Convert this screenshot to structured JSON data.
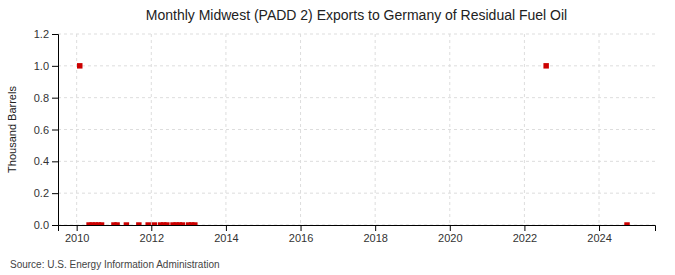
{
  "chart_data": {
    "type": "scatter",
    "title": "Monthly Midwest (PADD 2) Exports to Germany of Residual Fuel Oil",
    "ylabel": "Thousand Barrels",
    "source": "Source: U.S. Energy Information Administration",
    "color": "#cc0000",
    "marker": "square",
    "grid": true,
    "xlim": [
      2009.5,
      2025.5
    ],
    "xticks": [
      2010,
      2012,
      2014,
      2016,
      2018,
      2020,
      2022,
      2024
    ],
    "ylim": [
      0.0,
      1.2
    ],
    "yticks": [
      {
        "value": 0.0,
        "label": "0.0"
      },
      0.2,
      0.4,
      0.6,
      0.8,
      {
        "value": 1.0,
        "label": "1.0"
      },
      1.2
    ],
    "x": [
      2010.083,
      2010.333,
      2010.417,
      2010.5,
      2010.583,
      2010.667,
      2011.0,
      2011.083,
      2011.333,
      2011.667,
      2011.917,
      2012.083,
      2012.25,
      2012.333,
      2012.417,
      2012.583,
      2012.667,
      2012.75,
      2012.833,
      2013.0,
      2013.083,
      2013.167,
      2022.583,
      2024.75
    ],
    "values": [
      1.0,
      0.0,
      0.0,
      0.0,
      0.0,
      0.0,
      0.0,
      0.0,
      0.0,
      0.0,
      0.0,
      0.0,
      0.0,
      0.0,
      0.0,
      0.0,
      0.0,
      0.0,
      0.0,
      0.0,
      0.0,
      0.0,
      1.0,
      0.0
    ]
  }
}
